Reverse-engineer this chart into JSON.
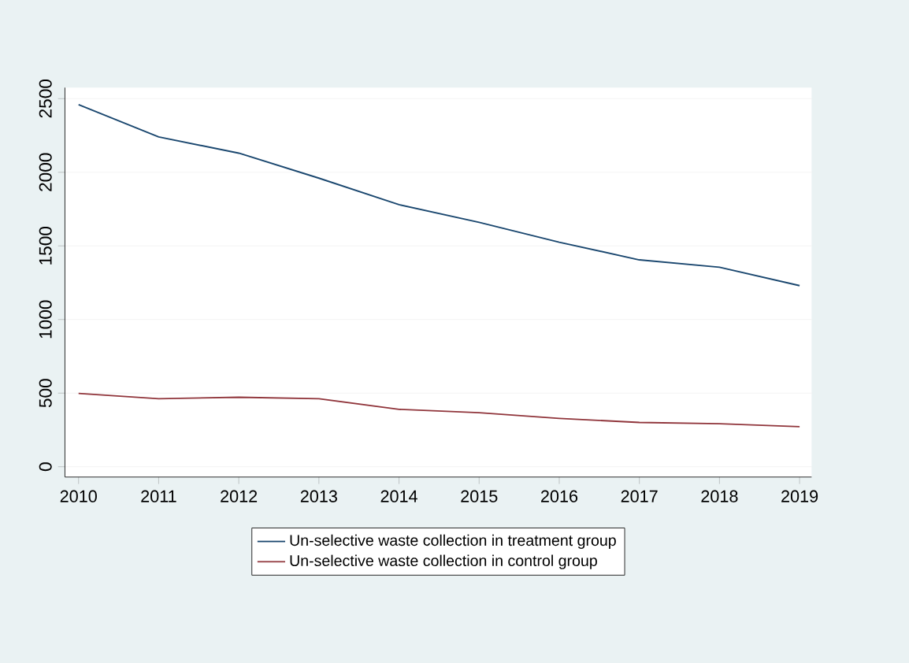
{
  "chart_data": {
    "type": "line",
    "x": [
      2010,
      2011,
      2012,
      2013,
      2014,
      2015,
      2016,
      2017,
      2018,
      2019
    ],
    "series": [
      {
        "name": "Un-selective waste collection in treatment group",
        "color": "#1a476f",
        "values": [
          2460,
          2240,
          2130,
          1960,
          1780,
          1660,
          1525,
          1405,
          1355,
          1230
        ]
      },
      {
        "name": "Un-selective waste collection in control group",
        "color": "#90353b",
        "values": [
          498,
          462,
          472,
          462,
          390,
          367,
          328,
          301,
          292,
          272
        ]
      }
    ],
    "xlim": [
      2009.83,
      2019.15
    ],
    "ylim": [
      -70,
      2575
    ],
    "xticks": [
      2010,
      2011,
      2012,
      2013,
      2014,
      2015,
      2016,
      2017,
      2018,
      2019
    ],
    "yticks": [
      0,
      500,
      1000,
      1500,
      2000,
      2500
    ],
    "grid": "y",
    "legend": "bottom",
    "marker": "none",
    "line_style": "solid"
  }
}
